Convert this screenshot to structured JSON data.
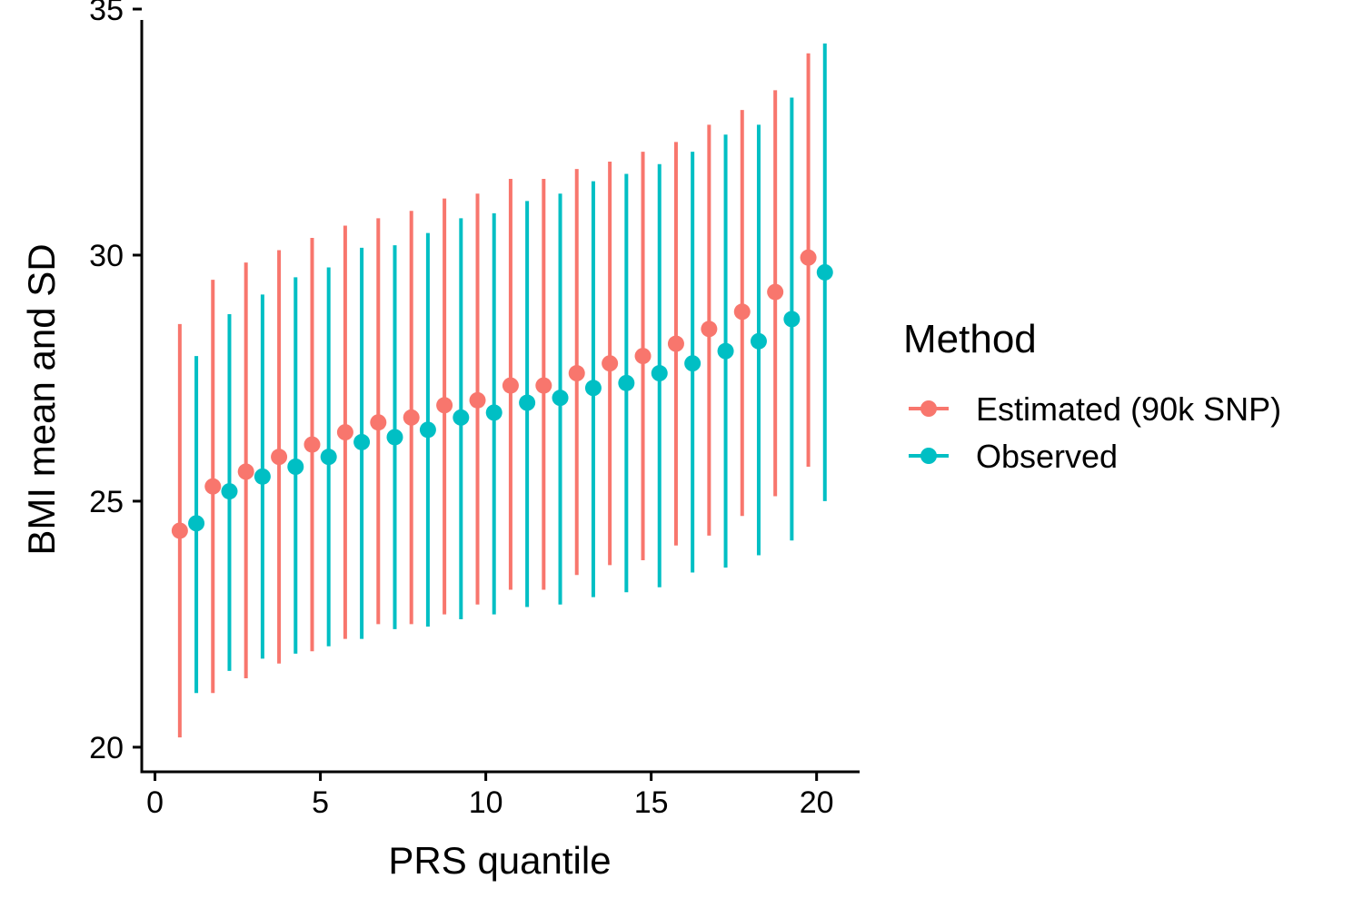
{
  "chart_data": {
    "type": "scatter",
    "title": "",
    "xlabel": "PRS quantile",
    "ylabel": "BMI mean and SD",
    "xlim": [
      -0.4,
      21.3
    ],
    "ylim": [
      19.5,
      35.0
    ],
    "x_ticks": [
      0,
      5,
      10,
      15,
      20
    ],
    "y_ticks": [
      20,
      25,
      30,
      35
    ],
    "x_tick_labels": [
      "0",
      "5",
      "10",
      "15",
      "20"
    ],
    "y_tick_labels": [
      "20",
      "25",
      "30",
      "35"
    ],
    "grid": false,
    "legend": {
      "title": "Method",
      "position": "right"
    },
    "dodge": 0.25,
    "categories": [
      1,
      2,
      3,
      4,
      5,
      6,
      7,
      8,
      9,
      10,
      11,
      12,
      13,
      14,
      15,
      16,
      17,
      18,
      19,
      20
    ],
    "series": [
      {
        "name": "Estimated (90k SNP)",
        "color": "#F8766D",
        "mean": [
          24.4,
          25.3,
          25.6,
          25.9,
          26.15,
          26.4,
          26.6,
          26.7,
          26.95,
          27.05,
          27.35,
          27.35,
          27.6,
          27.8,
          27.95,
          28.2,
          28.5,
          28.85,
          29.25,
          29.95
        ],
        "lower": [
          20.2,
          21.1,
          21.4,
          21.7,
          21.95,
          22.2,
          22.5,
          22.5,
          22.7,
          22.9,
          23.2,
          23.2,
          23.5,
          23.7,
          23.8,
          24.1,
          24.3,
          24.7,
          25.1,
          25.7
        ],
        "upper": [
          28.6,
          29.5,
          29.85,
          30.1,
          30.35,
          30.6,
          30.75,
          30.9,
          31.15,
          31.25,
          31.55,
          31.55,
          31.75,
          31.9,
          32.1,
          32.3,
          32.65,
          32.95,
          33.35,
          34.1
        ]
      },
      {
        "name": "Observed",
        "color": "#00BFC4",
        "mean": [
          24.55,
          25.2,
          25.5,
          25.7,
          25.9,
          26.2,
          26.3,
          26.45,
          26.7,
          26.8,
          27.0,
          27.1,
          27.3,
          27.4,
          27.6,
          27.8,
          28.05,
          28.25,
          28.7,
          29.65
        ],
        "lower": [
          21.1,
          21.55,
          21.8,
          21.9,
          22.05,
          22.2,
          22.4,
          22.45,
          22.6,
          22.7,
          22.85,
          22.9,
          23.05,
          23.15,
          23.25,
          23.55,
          23.65,
          23.9,
          24.2,
          25.0
        ],
        "upper": [
          27.95,
          28.8,
          29.2,
          29.55,
          29.75,
          30.15,
          30.2,
          30.45,
          30.75,
          30.85,
          31.1,
          31.25,
          31.5,
          31.65,
          31.85,
          32.1,
          32.45,
          32.65,
          33.2,
          34.3
        ]
      }
    ]
  }
}
